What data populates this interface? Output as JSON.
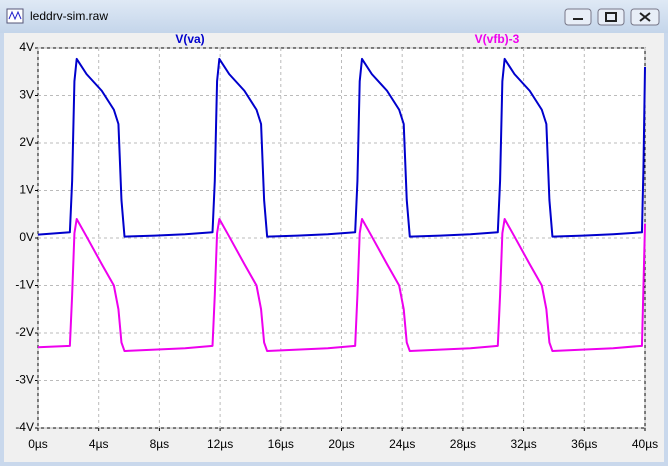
{
  "window": {
    "title": "leddrv-sim.raw"
  },
  "chart_data": {
    "type": "line",
    "x": [
      0,
      2.1,
      2.25,
      2.4,
      2.55,
      3.2,
      4.2,
      5.0,
      5.3,
      5.5,
      5.7,
      7.7,
      9.7,
      11.5,
      11.65,
      11.8,
      11.95,
      12.6,
      13.6,
      14.4,
      14.7,
      14.9,
      15.1,
      17.1,
      19.1,
      20.9,
      21.05,
      21.2,
      21.35,
      22.0,
      23.0,
      23.8,
      24.1,
      24.3,
      24.5,
      26.5,
      28.5,
      30.3,
      30.45,
      30.6,
      30.75,
      31.4,
      32.4,
      33.2,
      33.5,
      33.7,
      33.9,
      35.9,
      37.9,
      39.8,
      39.9,
      40
    ],
    "series": [
      {
        "name": "V(va)",
        "color": "#0000cc",
        "values": [
          0.07,
          0.12,
          1.2,
          3.3,
          3.77,
          3.45,
          3.1,
          2.7,
          2.4,
          0.8,
          0.03,
          0.05,
          0.08,
          0.12,
          1.2,
          3.3,
          3.77,
          3.45,
          3.1,
          2.7,
          2.4,
          0.8,
          0.03,
          0.05,
          0.08,
          0.12,
          1.2,
          3.3,
          3.77,
          3.45,
          3.1,
          2.7,
          2.4,
          0.8,
          0.03,
          0.05,
          0.08,
          0.12,
          1.2,
          3.3,
          3.77,
          3.45,
          3.1,
          2.7,
          2.4,
          0.8,
          0.03,
          0.05,
          0.08,
          0.12,
          1.5,
          3.6
        ]
      },
      {
        "name": "V(vfb)-3",
        "color": "#ee00ee",
        "values": [
          -2.3,
          -2.27,
          -1.2,
          0.1,
          0.4,
          0.03,
          -0.55,
          -1.0,
          -1.5,
          -2.2,
          -2.38,
          -2.35,
          -2.32,
          -2.27,
          -1.2,
          0.1,
          0.4,
          0.03,
          -0.55,
          -1.0,
          -1.5,
          -2.2,
          -2.38,
          -2.35,
          -2.32,
          -2.27,
          -1.2,
          0.1,
          0.4,
          0.03,
          -0.55,
          -1.0,
          -1.5,
          -2.2,
          -2.38,
          -2.35,
          -2.32,
          -2.27,
          -1.2,
          0.1,
          0.4,
          0.03,
          -0.55,
          -1.0,
          -1.5,
          -2.2,
          -2.38,
          -2.35,
          -2.32,
          -2.27,
          -1.0,
          0.3
        ]
      }
    ],
    "xlim": [
      0,
      40
    ],
    "xticks": [
      {
        "value": 0,
        "label": "0µs"
      },
      {
        "value": 4,
        "label": "4µs"
      },
      {
        "value": 8,
        "label": "8µs"
      },
      {
        "value": 12,
        "label": "12µs"
      },
      {
        "value": 16,
        "label": "16µs"
      },
      {
        "value": 20,
        "label": "20µs"
      },
      {
        "value": 24,
        "label": "24µs"
      },
      {
        "value": 28,
        "label": "28µs"
      },
      {
        "value": 32,
        "label": "32µs"
      },
      {
        "value": 36,
        "label": "36µs"
      },
      {
        "value": 40,
        "label": "40µs"
      }
    ],
    "ylim": [
      -4,
      4
    ],
    "yticks": [
      {
        "value": -4,
        "label": "-4V"
      },
      {
        "value": -3,
        "label": "-3V"
      },
      {
        "value": -2,
        "label": "-2V"
      },
      {
        "value": -1,
        "label": "-1V"
      },
      {
        "value": 0,
        "label": "0V"
      },
      {
        "value": 1,
        "label": "1V"
      },
      {
        "value": 2,
        "label": "2V"
      },
      {
        "value": 3,
        "label": "3V"
      },
      {
        "value": 4,
        "label": "4V"
      }
    ],
    "grid": true
  }
}
